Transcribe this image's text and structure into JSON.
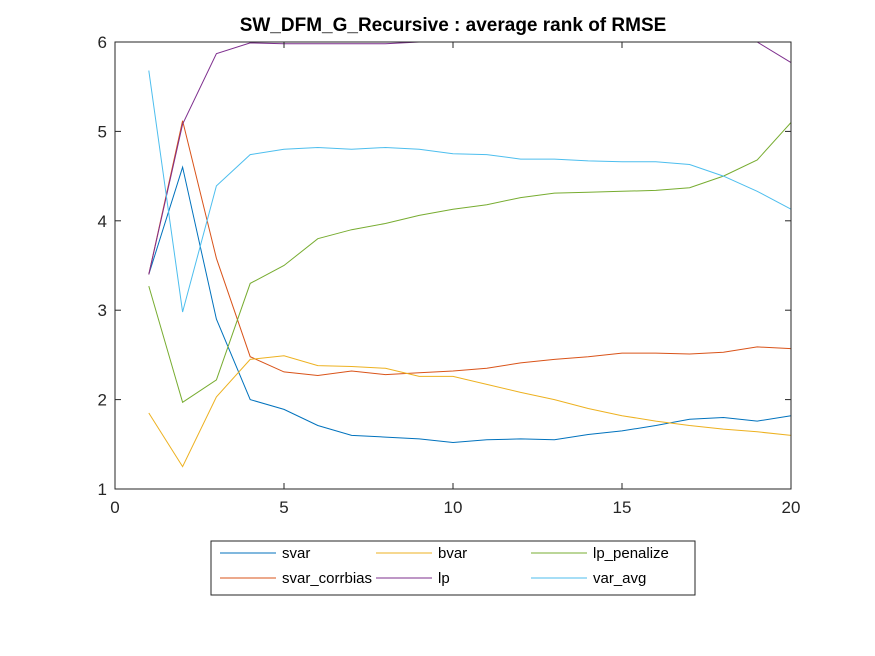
{
  "chart_data": {
    "type": "line",
    "title": "SW_DFM_G_Recursive : average rank of RMSE",
    "xlabel": "",
    "ylabel": "",
    "xlim": [
      0,
      20
    ],
    "ylim": [
      1,
      6
    ],
    "xticks": [
      0,
      5,
      10,
      15,
      20
    ],
    "yticks": [
      1,
      2,
      3,
      4,
      5,
      6
    ],
    "grid": false,
    "legend_position": "bottom-outside",
    "legend_columns": 3,
    "x": [
      1,
      2,
      3,
      4,
      5,
      6,
      7,
      8,
      9,
      10,
      11,
      12,
      13,
      14,
      15,
      16,
      17,
      18,
      19,
      20
    ],
    "series": [
      {
        "name": "svar",
        "color": "#0072BD",
        "values": [
          3.4,
          4.6,
          2.9,
          2.0,
          1.89,
          1.71,
          1.6,
          1.58,
          1.56,
          1.52,
          1.55,
          1.56,
          1.55,
          1.61,
          1.65,
          1.71,
          1.78,
          1.8,
          1.76,
          1.82
        ]
      },
      {
        "name": "svar_corrbias",
        "color": "#D95319",
        "values": [
          3.4,
          5.12,
          3.58,
          2.48,
          2.31,
          2.27,
          2.32,
          2.28,
          2.3,
          2.32,
          2.35,
          2.41,
          2.45,
          2.48,
          2.52,
          2.52,
          2.51,
          2.53,
          2.59,
          2.57
        ]
      },
      {
        "name": "bvar",
        "color": "#EDB120",
        "values": [
          1.85,
          1.25,
          2.03,
          2.45,
          2.49,
          2.38,
          2.37,
          2.35,
          2.26,
          2.26,
          2.17,
          2.08,
          2.0,
          1.9,
          1.82,
          1.76,
          1.71,
          1.67,
          1.64,
          1.6
        ]
      },
      {
        "name": "lp",
        "color": "#7E2F8E",
        "values": [
          3.4,
          5.08,
          5.87,
          5.99,
          5.98,
          5.98,
          5.98,
          5.98,
          6.0,
          6.0,
          6.0,
          6.0,
          6.0,
          6.0,
          6.0,
          6.0,
          6.0,
          6.0,
          6.0,
          5.77
        ]
      },
      {
        "name": "lp_penalize",
        "color": "#77AC30",
        "values": [
          3.27,
          1.97,
          2.22,
          3.3,
          3.5,
          3.8,
          3.9,
          3.97,
          4.06,
          4.13,
          4.18,
          4.26,
          4.31,
          4.32,
          4.33,
          4.34,
          4.37,
          4.5,
          4.68,
          5.1
        ]
      },
      {
        "name": "var_avg",
        "color": "#4DBEEE",
        "values": [
          5.68,
          2.98,
          4.39,
          4.74,
          4.8,
          4.82,
          4.8,
          4.82,
          4.8,
          4.75,
          4.74,
          4.69,
          4.69,
          4.67,
          4.66,
          4.66,
          4.63,
          4.5,
          4.33,
          4.13
        ]
      }
    ]
  }
}
